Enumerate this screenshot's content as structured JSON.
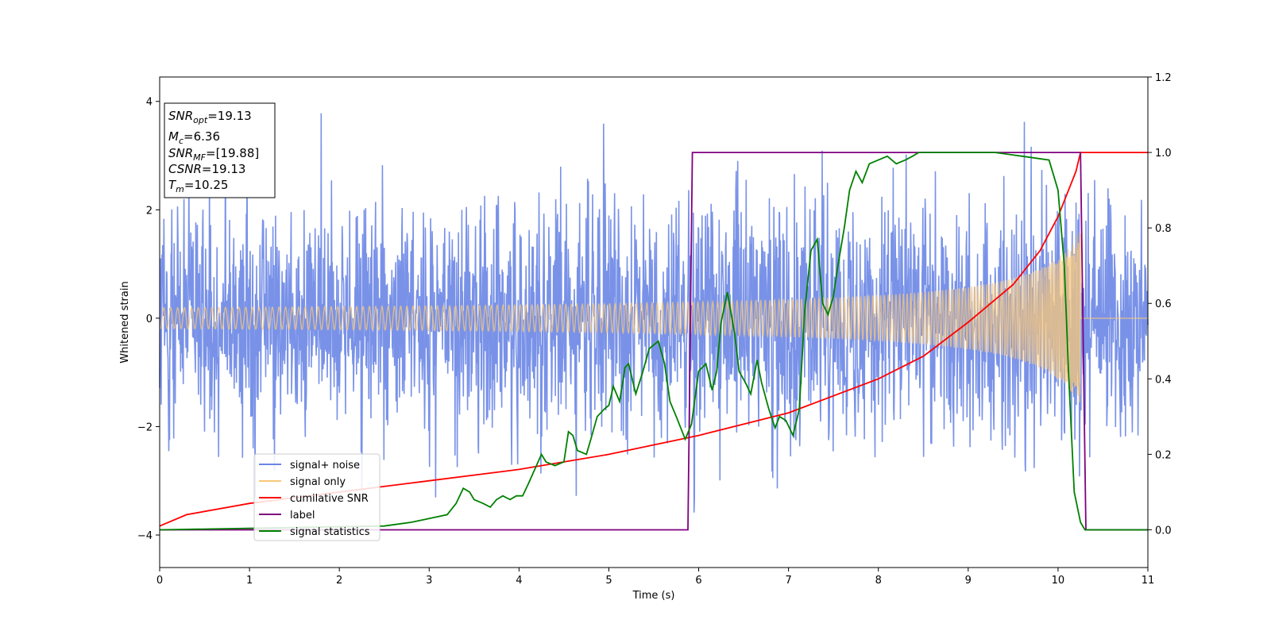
{
  "chart_data": {
    "type": "line",
    "xlabel": "Time (s)",
    "ylabel": "Whitened strain",
    "xlim": [
      0,
      11
    ],
    "ylim_left": [
      -4.6,
      4.45
    ],
    "ylim_right": [
      -0.1,
      1.2
    ],
    "xticks": [
      "0",
      "1",
      "2",
      "3",
      "4",
      "5",
      "6",
      "7",
      "8",
      "9",
      "10",
      "11"
    ],
    "yticks_left": [
      "−4",
      "−2",
      "0",
      "2",
      "4"
    ],
    "yticks_right": [
      "0.0",
      "0.2",
      "0.4",
      "0.6",
      "0.8",
      "1.0",
      "1.2"
    ],
    "grid": false,
    "legend_position": "lower-left",
    "info_box": {
      "snr_opt": {
        "symbol": "SNR",
        "sub": "opt",
        "value": "=19.13"
      },
      "mc": {
        "symbol": "M",
        "sub": "c",
        "value": "=6.36"
      },
      "snr_mf": {
        "symbol": "SNR",
        "sub": "MF",
        "value": "=[19.88]"
      },
      "csnr": {
        "symbol": "CSNR",
        "value": "=19.13"
      },
      "tm": {
        "symbol": "T",
        "sub": "m",
        "value": "=10.25"
      }
    },
    "series": [
      {
        "name": "signal+ noise",
        "color": "#6a86e6",
        "axis": "left",
        "description_kind": "noise",
        "std": 1.05,
        "range": [
          0,
          11
        ]
      },
      {
        "name": "signal only",
        "color": "#f8c77a",
        "axis": "left",
        "chirp": {
          "t_merge": 10.25,
          "amp_start": 0.07,
          "amp_end": 1.65
        }
      },
      {
        "name": "cumilative SNR",
        "color": "#ff0000",
        "axis": "right",
        "x": [
          0,
          0.3,
          1,
          2,
          3,
          4,
          5,
          6,
          7,
          8,
          8.5,
          9,
          9.5,
          9.8,
          10,
          10.1,
          10.2,
          10.25,
          10.3,
          11
        ],
        "y": [
          0.01,
          0.04,
          0.07,
          0.1,
          0.13,
          0.16,
          0.2,
          0.25,
          0.31,
          0.4,
          0.46,
          0.55,
          0.65,
          0.74,
          0.83,
          0.89,
          0.95,
          1.0,
          1.0,
          1.0
        ]
      },
      {
        "name": "label",
        "color": "#800080",
        "axis": "right",
        "x": [
          0,
          5.88,
          5.93,
          10.25,
          10.31,
          11
        ],
        "y": [
          0,
          0,
          1,
          1,
          0,
          0
        ]
      },
      {
        "name": "signal statistics",
        "color": "#008000",
        "axis": "right",
        "x": [
          0,
          2.5,
          2.8,
          3.0,
          3.2,
          3.3,
          3.38,
          3.45,
          3.5,
          3.6,
          3.68,
          3.75,
          3.82,
          3.9,
          3.97,
          4.04,
          4.1,
          4.25,
          4.3,
          4.4,
          4.5,
          4.55,
          4.6,
          4.65,
          4.75,
          4.8,
          4.87,
          4.95,
          5.0,
          5.05,
          5.12,
          5.18,
          5.22,
          5.3,
          5.38,
          5.45,
          5.55,
          5.62,
          5.68,
          5.75,
          5.85,
          5.92,
          6.0,
          6.08,
          6.15,
          6.2,
          6.25,
          6.32,
          6.4,
          6.45,
          6.52,
          6.58,
          6.65,
          6.7,
          6.78,
          6.85,
          6.9,
          6.97,
          7.05,
          7.12,
          7.18,
          7.25,
          7.32,
          7.38,
          7.44,
          7.5,
          7.55,
          7.62,
          7.68,
          7.75,
          7.82,
          7.9,
          8.0,
          8.1,
          8.2,
          8.3,
          8.38,
          8.45,
          8.55,
          8.7,
          9.0,
          9.3,
          9.6,
          9.9,
          10.0,
          10.07,
          10.12,
          10.18,
          10.25,
          10.3,
          11
        ],
        "y": [
          0,
          0.01,
          0.02,
          0.03,
          0.04,
          0.07,
          0.11,
          0.1,
          0.08,
          0.07,
          0.06,
          0.08,
          0.09,
          0.08,
          0.09,
          0.09,
          0.12,
          0.2,
          0.18,
          0.17,
          0.18,
          0.26,
          0.25,
          0.21,
          0.2,
          0.24,
          0.3,
          0.32,
          0.33,
          0.38,
          0.34,
          0.43,
          0.44,
          0.36,
          0.42,
          0.48,
          0.5,
          0.44,
          0.34,
          0.3,
          0.24,
          0.28,
          0.42,
          0.44,
          0.37,
          0.42,
          0.55,
          0.63,
          0.52,
          0.42,
          0.39,
          0.36,
          0.45,
          0.39,
          0.32,
          0.27,
          0.3,
          0.29,
          0.25,
          0.32,
          0.58,
          0.74,
          0.77,
          0.6,
          0.57,
          0.62,
          0.7,
          0.8,
          0.9,
          0.95,
          0.92,
          0.97,
          0.98,
          0.99,
          0.97,
          0.98,
          0.99,
          1.0,
          1.0,
          1.0,
          1.0,
          1.0,
          0.99,
          0.98,
          0.9,
          0.7,
          0.4,
          0.1,
          0.02,
          0,
          0
        ]
      }
    ]
  }
}
